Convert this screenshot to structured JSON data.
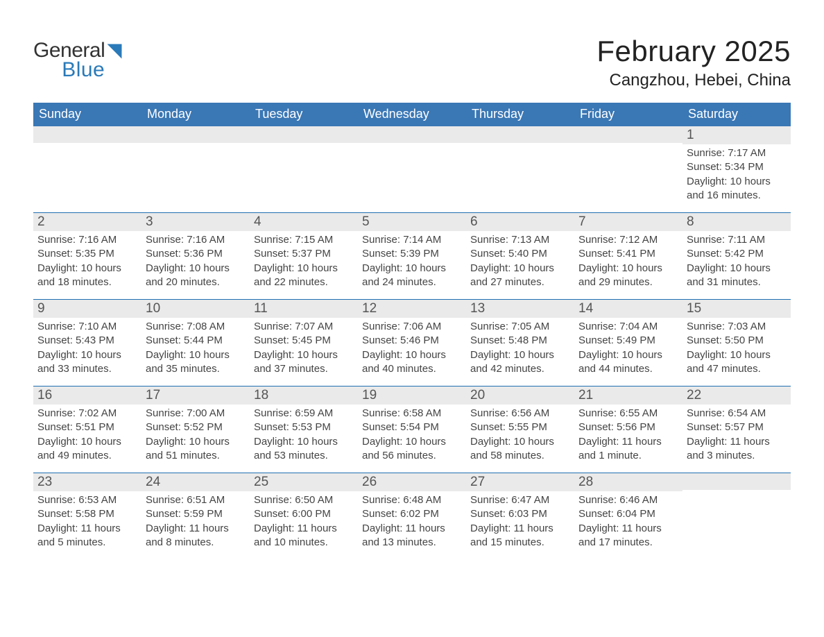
{
  "colors": {
    "header_blue": "#3a77b5",
    "accent_blue": "#1f6fb2",
    "logo_blue": "#2a7ab9",
    "row_header_bg": "#eaeaea",
    "row_divider": "#1f6fb2",
    "cell_text": "#444444",
    "page_bg": "#ffffff",
    "weekday_text": "#ffffff"
  },
  "typography": {
    "title_fontsize": 42,
    "subtitle_fontsize": 24,
    "weekday_fontsize": 18,
    "daynum_fontsize": 19,
    "body_fontsize": 15,
    "logo_fontsize": 30,
    "font_family": "Arial"
  },
  "logo": {
    "word_general": "General",
    "word_blue": "Blue"
  },
  "header": {
    "title": "February 2025",
    "location": "Cangzhou, Hebei, China"
  },
  "weekdays": [
    "Sunday",
    "Monday",
    "Tuesday",
    "Wednesday",
    "Thursday",
    "Friday",
    "Saturday"
  ],
  "labels": {
    "sunrise": "Sunrise",
    "sunset": "Sunset",
    "daylight": "Daylight"
  },
  "month": {
    "year": 2025,
    "month": 2,
    "first_weekday_index": 6,
    "days_in_month": 28
  },
  "days": [
    {
      "day": 1,
      "sunrise": "7:17 AM",
      "sunset": "5:34 PM",
      "daylight": "10 hours and 16 minutes."
    },
    {
      "day": 2,
      "sunrise": "7:16 AM",
      "sunset": "5:35 PM",
      "daylight": "10 hours and 18 minutes."
    },
    {
      "day": 3,
      "sunrise": "7:16 AM",
      "sunset": "5:36 PM",
      "daylight": "10 hours and 20 minutes."
    },
    {
      "day": 4,
      "sunrise": "7:15 AM",
      "sunset": "5:37 PM",
      "daylight": "10 hours and 22 minutes."
    },
    {
      "day": 5,
      "sunrise": "7:14 AM",
      "sunset": "5:39 PM",
      "daylight": "10 hours and 24 minutes."
    },
    {
      "day": 6,
      "sunrise": "7:13 AM",
      "sunset": "5:40 PM",
      "daylight": "10 hours and 27 minutes."
    },
    {
      "day": 7,
      "sunrise": "7:12 AM",
      "sunset": "5:41 PM",
      "daylight": "10 hours and 29 minutes."
    },
    {
      "day": 8,
      "sunrise": "7:11 AM",
      "sunset": "5:42 PM",
      "daylight": "10 hours and 31 minutes."
    },
    {
      "day": 9,
      "sunrise": "7:10 AM",
      "sunset": "5:43 PM",
      "daylight": "10 hours and 33 minutes."
    },
    {
      "day": 10,
      "sunrise": "7:08 AM",
      "sunset": "5:44 PM",
      "daylight": "10 hours and 35 minutes."
    },
    {
      "day": 11,
      "sunrise": "7:07 AM",
      "sunset": "5:45 PM",
      "daylight": "10 hours and 37 minutes."
    },
    {
      "day": 12,
      "sunrise": "7:06 AM",
      "sunset": "5:46 PM",
      "daylight": "10 hours and 40 minutes."
    },
    {
      "day": 13,
      "sunrise": "7:05 AM",
      "sunset": "5:48 PM",
      "daylight": "10 hours and 42 minutes."
    },
    {
      "day": 14,
      "sunrise": "7:04 AM",
      "sunset": "5:49 PM",
      "daylight": "10 hours and 44 minutes."
    },
    {
      "day": 15,
      "sunrise": "7:03 AM",
      "sunset": "5:50 PM",
      "daylight": "10 hours and 47 minutes."
    },
    {
      "day": 16,
      "sunrise": "7:02 AM",
      "sunset": "5:51 PM",
      "daylight": "10 hours and 49 minutes."
    },
    {
      "day": 17,
      "sunrise": "7:00 AM",
      "sunset": "5:52 PM",
      "daylight": "10 hours and 51 minutes."
    },
    {
      "day": 18,
      "sunrise": "6:59 AM",
      "sunset": "5:53 PM",
      "daylight": "10 hours and 53 minutes."
    },
    {
      "day": 19,
      "sunrise": "6:58 AM",
      "sunset": "5:54 PM",
      "daylight": "10 hours and 56 minutes."
    },
    {
      "day": 20,
      "sunrise": "6:56 AM",
      "sunset": "5:55 PM",
      "daylight": "10 hours and 58 minutes."
    },
    {
      "day": 21,
      "sunrise": "6:55 AM",
      "sunset": "5:56 PM",
      "daylight": "11 hours and 1 minute."
    },
    {
      "day": 22,
      "sunrise": "6:54 AM",
      "sunset": "5:57 PM",
      "daylight": "11 hours and 3 minutes."
    },
    {
      "day": 23,
      "sunrise": "6:53 AM",
      "sunset": "5:58 PM",
      "daylight": "11 hours and 5 minutes."
    },
    {
      "day": 24,
      "sunrise": "6:51 AM",
      "sunset": "5:59 PM",
      "daylight": "11 hours and 8 minutes."
    },
    {
      "day": 25,
      "sunrise": "6:50 AM",
      "sunset": "6:00 PM",
      "daylight": "11 hours and 10 minutes."
    },
    {
      "day": 26,
      "sunrise": "6:48 AM",
      "sunset": "6:02 PM",
      "daylight": "11 hours and 13 minutes."
    },
    {
      "day": 27,
      "sunrise": "6:47 AM",
      "sunset": "6:03 PM",
      "daylight": "11 hours and 15 minutes."
    },
    {
      "day": 28,
      "sunrise": "6:46 AM",
      "sunset": "6:04 PM",
      "daylight": "11 hours and 17 minutes."
    }
  ]
}
